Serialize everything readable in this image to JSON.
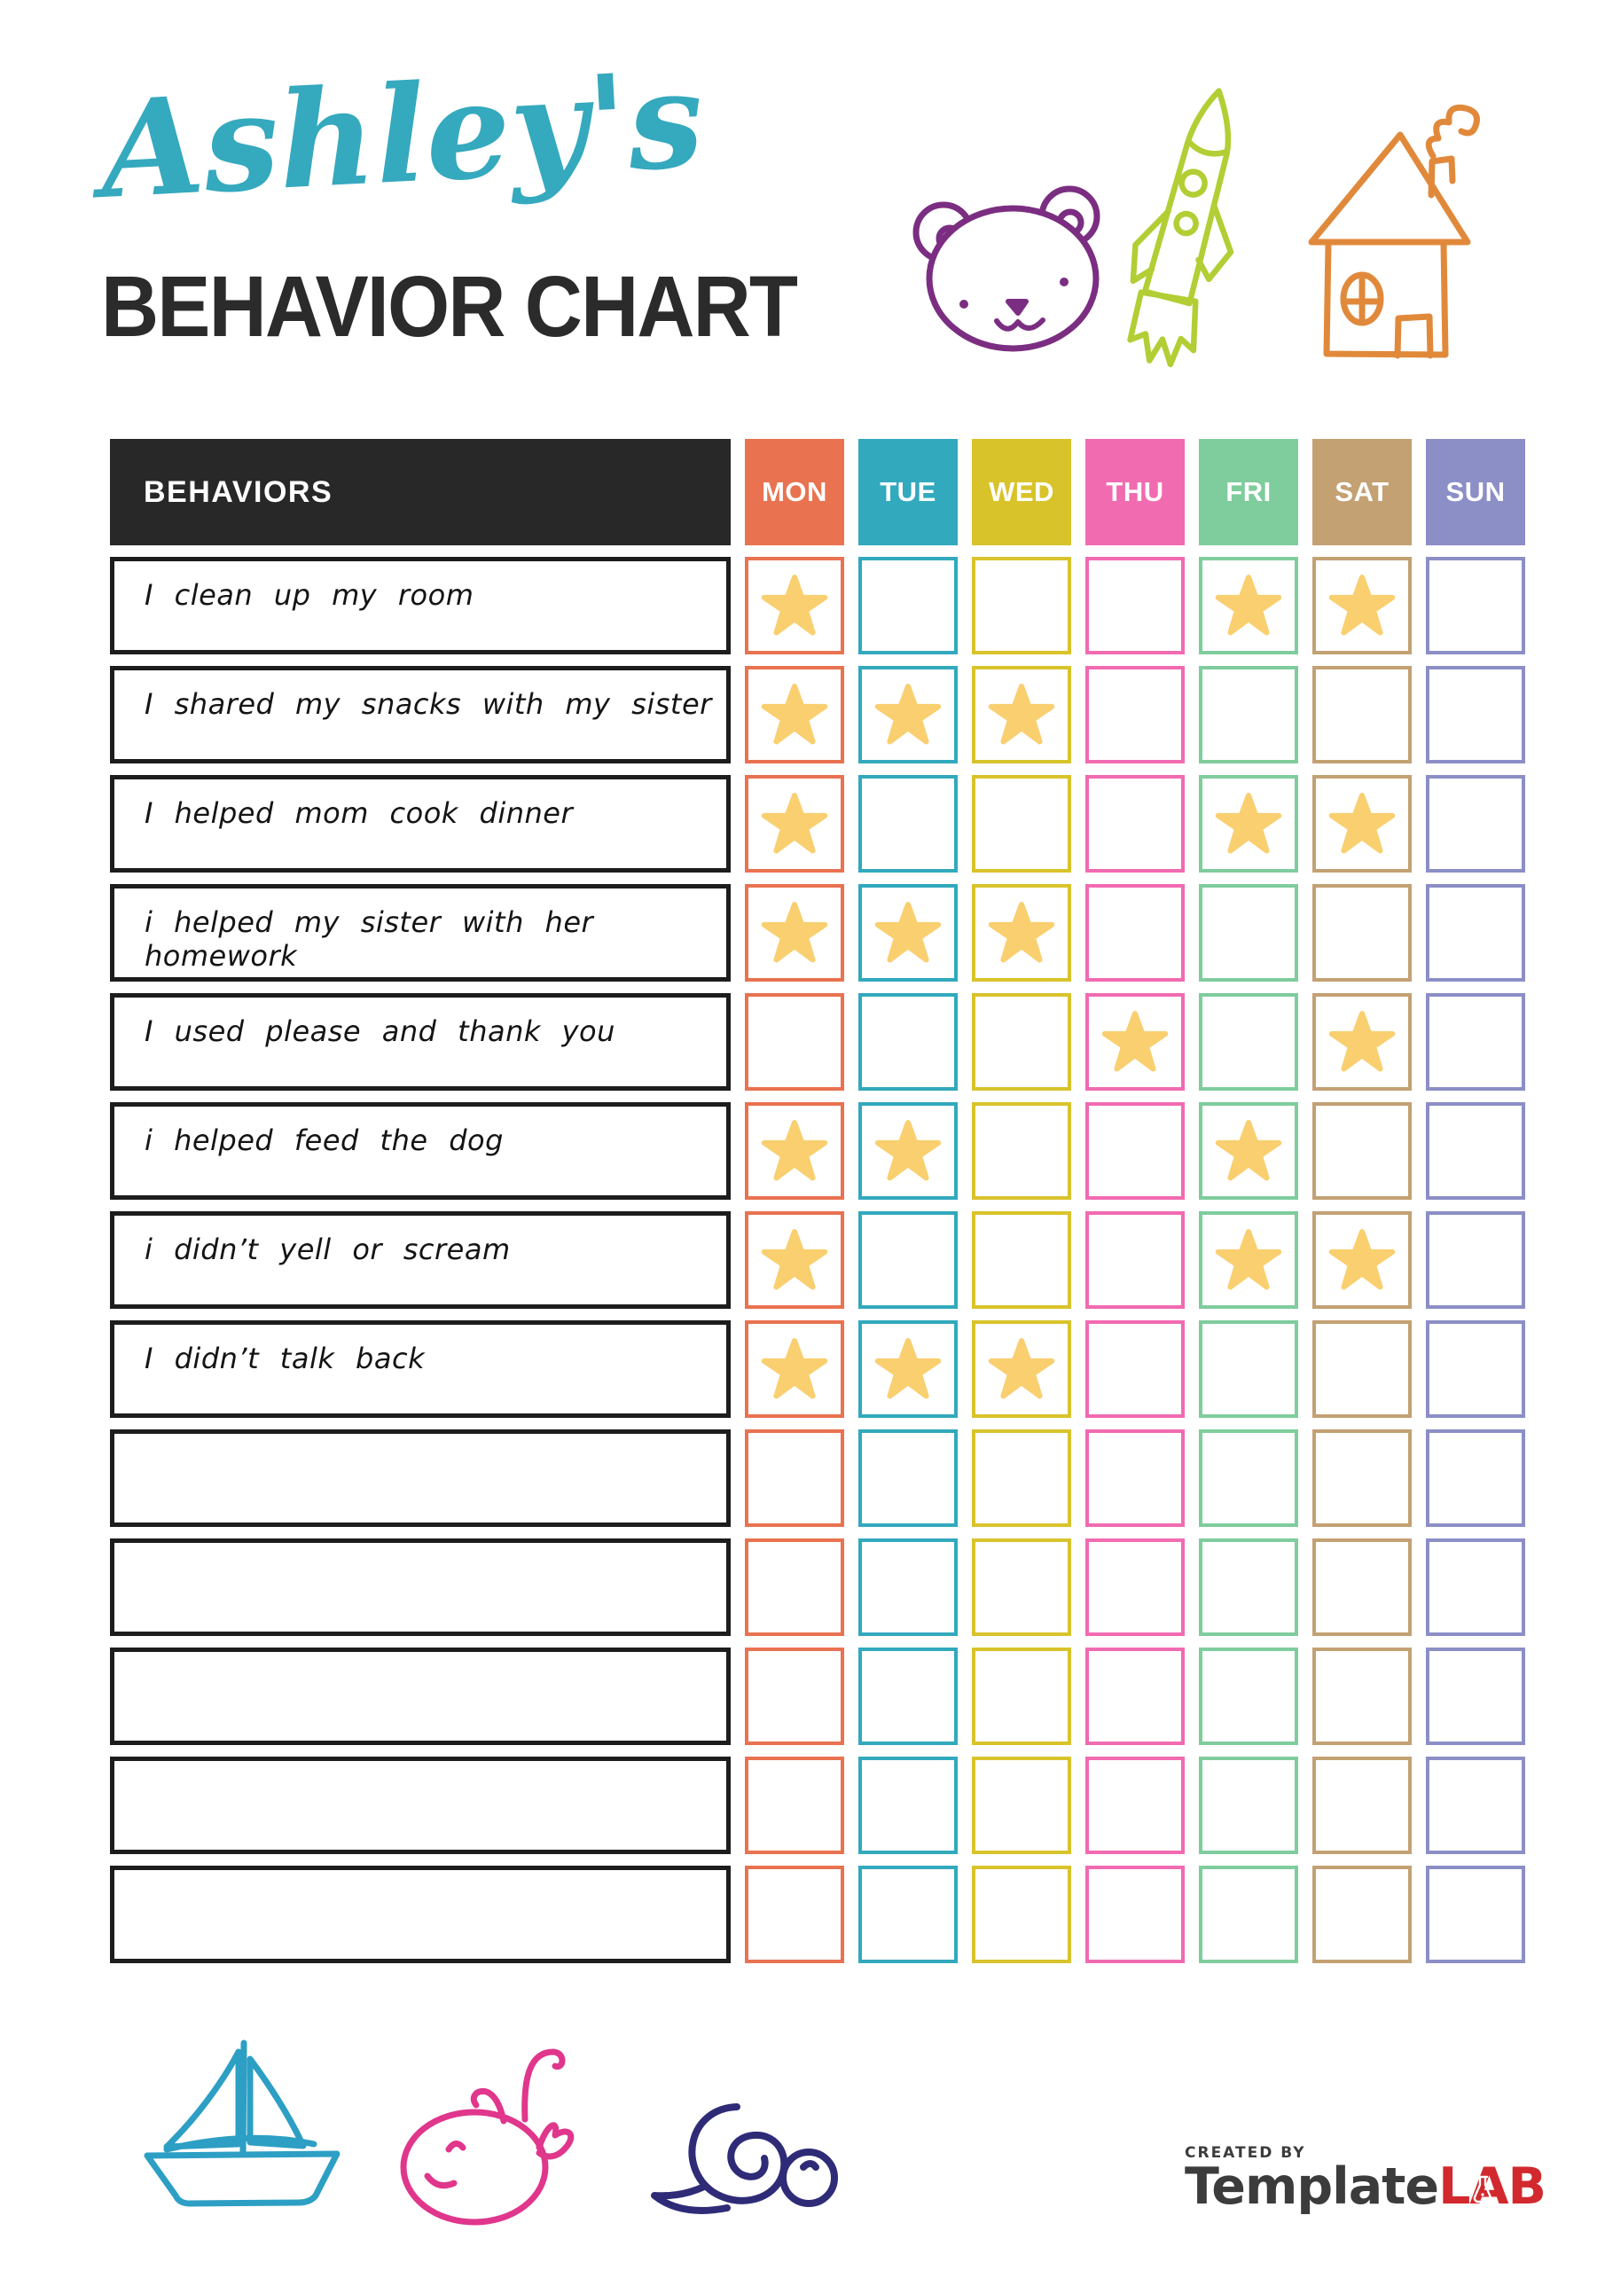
{
  "header": {
    "title_script": "Ashley's",
    "title_main": "BEHAVIOR CHART",
    "doodles_top": [
      "bear",
      "rocket",
      "house"
    ]
  },
  "table": {
    "behaviors_header": "BEHAVIORS",
    "days": [
      {
        "label": "MON",
        "color": "#E97250"
      },
      {
        "label": "TUE",
        "color": "#32A9BD"
      },
      {
        "label": "WED",
        "color": "#D9C32B"
      },
      {
        "label": "THU",
        "color": "#F16BB1"
      },
      {
        "label": "FRI",
        "color": "#7FCC9D"
      },
      {
        "label": "SAT",
        "color": "#C3A173"
      },
      {
        "label": "SUN",
        "color": "#8C8EC6"
      }
    ],
    "rows": [
      {
        "behavior": "I clean up my room",
        "stars": [
          "MON",
          "FRI",
          "SAT"
        ]
      },
      {
        "behavior": "I shared my snacks with my sister",
        "stars": [
          "MON",
          "TUE",
          "WED"
        ]
      },
      {
        "behavior": "I helped mom cook dinner",
        "stars": [
          "MON",
          "FRI",
          "SAT"
        ]
      },
      {
        "behavior": "i helped my sister with her homework",
        "stars": [
          "MON",
          "TUE",
          "WED"
        ]
      },
      {
        "behavior": "I used please and thank you",
        "stars": [
          "THU",
          "SAT"
        ]
      },
      {
        "behavior": "i helped feed the dog",
        "stars": [
          "MON",
          "TUE",
          "FRI"
        ]
      },
      {
        "behavior": "i didn’t yell or scream",
        "stars": [
          "MON",
          "FRI",
          "SAT"
        ]
      },
      {
        "behavior": "I didn’t talk back",
        "stars": [
          "MON",
          "TUE",
          "WED"
        ]
      },
      {
        "behavior": "",
        "stars": []
      },
      {
        "behavior": "",
        "stars": []
      },
      {
        "behavior": "",
        "stars": []
      },
      {
        "behavior": "",
        "stars": []
      },
      {
        "behavior": "",
        "stars": []
      }
    ]
  },
  "footer": {
    "created_by": "CREATED BY",
    "brand_name": "Template",
    "brand_suffix": "LAB",
    "doodles_bottom": [
      "sailboat",
      "whale",
      "snail"
    ]
  },
  "colors": {
    "title_script": "#35A9BE",
    "title_main": "#2B2B2B",
    "header_bg": "#282828",
    "star": "#F9CF70",
    "bear": "#7B2E81",
    "rocket": "#B2CE35",
    "house": "#E1893B",
    "sailboat": "#2D9FC4",
    "whale": "#E0368C",
    "snail": "#2F2B77",
    "logo_text": "#3C3C3C",
    "logo_accent": "#D2292E"
  }
}
